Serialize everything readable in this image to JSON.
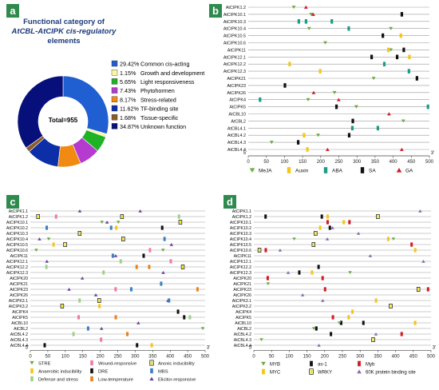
{
  "panels": {
    "a": {
      "letter": "a",
      "title_lines": [
        "Functional category of",
        "AtCBL-AtCIPK cis-regulatory",
        "elements"
      ],
      "total_label": "Total=955",
      "slices": [
        {
          "pct": "29.42%",
          "label": "Common cis-acting",
          "value": 29.42,
          "color": "#1f5fd1"
        },
        {
          "pct": "1.15%",
          "label": "Growth and development",
          "value": 1.15,
          "color": "#fbf7a8"
        },
        {
          "pct": "5.65%",
          "label": "Light responsiveness",
          "value": 5.65,
          "color": "#1db324"
        },
        {
          "pct": "7.43%",
          "label": "Phytohormen",
          "value": 7.43,
          "color": "#b43ad0"
        },
        {
          "pct": "8.17%",
          "label": "Stress-related",
          "value": 8.17,
          "color": "#f18a12"
        },
        {
          "pct": "11.62%",
          "label": "TF-binding site",
          "value": 11.62,
          "color": "#0c2fa8"
        },
        {
          "pct": "1.68%",
          "label": "Tissue-specific",
          "value": 1.68,
          "color": "#8c5b29"
        },
        {
          "pct": "34.87%",
          "label": "Unknown function",
          "value": 34.87,
          "color": "#07107a"
        }
      ]
    },
    "b": {
      "letter": "b",
      "genes": [
        "AtCIPK1.2",
        "AtCIPK10.1",
        "AtCIPK10.3",
        "AtCIPK10.4",
        "AtCIPK10.5",
        "AtCIPK10.6",
        "AtCIPK11",
        "AtCIPK12.1",
        "AtCIPK12.2",
        "AtCIPK12.3",
        "AtCIPK21",
        "AtCIPK23",
        "AtCIPK26",
        "AtCIPK4",
        "AtCIPK5",
        "AtCBL10",
        "AtCBL2",
        "AtCBL4.1",
        "AtCBL4.2",
        "AtCBL4.3",
        "AtCBL4.4"
      ],
      "ticks": [
        "0",
        "50",
        "100",
        "150",
        "200",
        "250",
        "300",
        "350",
        "400",
        "450",
        "500"
      ],
      "end5": "5'",
      "end3": "3'",
      "legend": [
        {
          "label": "MeJA",
          "shape": "tri-down",
          "color": "#6aad3d"
        },
        {
          "label": "Auxin",
          "shape": "rect",
          "color": "#f5c518"
        },
        {
          "label": "ABA",
          "shape": "rect",
          "color": "#1b9c86"
        },
        {
          "label": "SA",
          "shape": "rect",
          "color": "#111111"
        },
        {
          "label": "GA",
          "shape": "tri-up",
          "color": "#d11a24"
        }
      ]
    },
    "c": {
      "letter": "c",
      "genes": [
        "AtCIPK1.1",
        "AtCIPK1.2",
        "AtCIPK10.1",
        "AtCIPK10.2",
        "AtCIPK10.3",
        "AtCIPK10.4",
        "AtCIPK10.5",
        "AtCIPK10.6",
        "AtCIPK11",
        "AtCIPK12.1",
        "AtCIPK12.2",
        "AtCIPK12.3",
        "AtCIPK20",
        "AtCIPK21",
        "AtCIPK23",
        "AtCIPK26",
        "AtCIPK3.1",
        "AtCIPK3.2",
        "AtCIPK4",
        "AtCIPK5",
        "AtCBL10",
        "AtCBL2",
        "AtCBL4.2",
        "AtCBL4.3",
        "AtCBL4.4"
      ],
      "ticks": [
        "0",
        "50",
        "100",
        "150",
        "200",
        "250",
        "300",
        "350",
        "400",
        "450",
        "500"
      ],
      "end5": "5'",
      "end3": "3'",
      "legend": [
        {
          "label": "STRE",
          "shape": "tri-down",
          "color": "#6aad3d"
        },
        {
          "label": "Wound-responsive",
          "shape": "rect",
          "color": "#f07b9a"
        },
        {
          "label": "Anoxic inducibility",
          "shape": "rect-outline",
          "color": "#f5e61a"
        },
        {
          "label": "Anaerobic inducibility",
          "shape": "rect",
          "color": "#f5c518"
        },
        {
          "label": "DRE",
          "shape": "rect",
          "color": "#111111"
        },
        {
          "label": "MBS",
          "shape": "rect",
          "color": "#3a7fc4"
        },
        {
          "label": "Defense and stress",
          "shape": "rect",
          "color": "#9fd08a"
        },
        {
          "label": "Low-temperature",
          "shape": "rect",
          "color": "#e9821e"
        },
        {
          "label": "Elicitor-responsive",
          "shape": "tri-up",
          "color": "#6d3fa0"
        }
      ]
    },
    "d": {
      "letter": "d",
      "genes": [
        "AtCIPK1.1",
        "AtCIPK1.2",
        "AtCIPK10.1",
        "AtCIPK10.2",
        "AtCIPK10.3",
        "AtCIPK10.4",
        "AtCIPK10.5",
        "AtCIPK10.6",
        "AtCIPK11",
        "AtCIPK12.1",
        "AtCIPK12.2",
        "AtCIPK12.3",
        "AtCIPK20",
        "AtCIPK21",
        "AtCIPK23",
        "AtCIPK26",
        "AtCIPK3.1",
        "AtCIPK3.2",
        "AtCIPK4",
        "AtCIPK5",
        "AtCBL10",
        "AtCBL2",
        "AtCBL4.2",
        "AtCBL4.3",
        "AtCBL4.4"
      ],
      "ticks": [
        "0",
        "50",
        "100",
        "150",
        "200",
        "250",
        "300",
        "350",
        "400",
        "450",
        "500"
      ],
      "end5": "5'",
      "end3": "3'",
      "legend": [
        {
          "label": "MYB",
          "shape": "tri-down",
          "color": "#6aad3d"
        },
        {
          "label": "as-1",
          "shape": "rect",
          "color": "#111111"
        },
        {
          "label": "Myb",
          "shape": "rect",
          "color": "#d11a24"
        },
        {
          "label": "MYC",
          "shape": "rect",
          "color": "#f5c518"
        },
        {
          "label": "WRKY",
          "shape": "rect-outline",
          "color": "#f5e61a"
        },
        {
          "label": "60K protein binding site",
          "shape": "tri-up",
          "color": "#8a6bb0"
        }
      ]
    }
  }
}
